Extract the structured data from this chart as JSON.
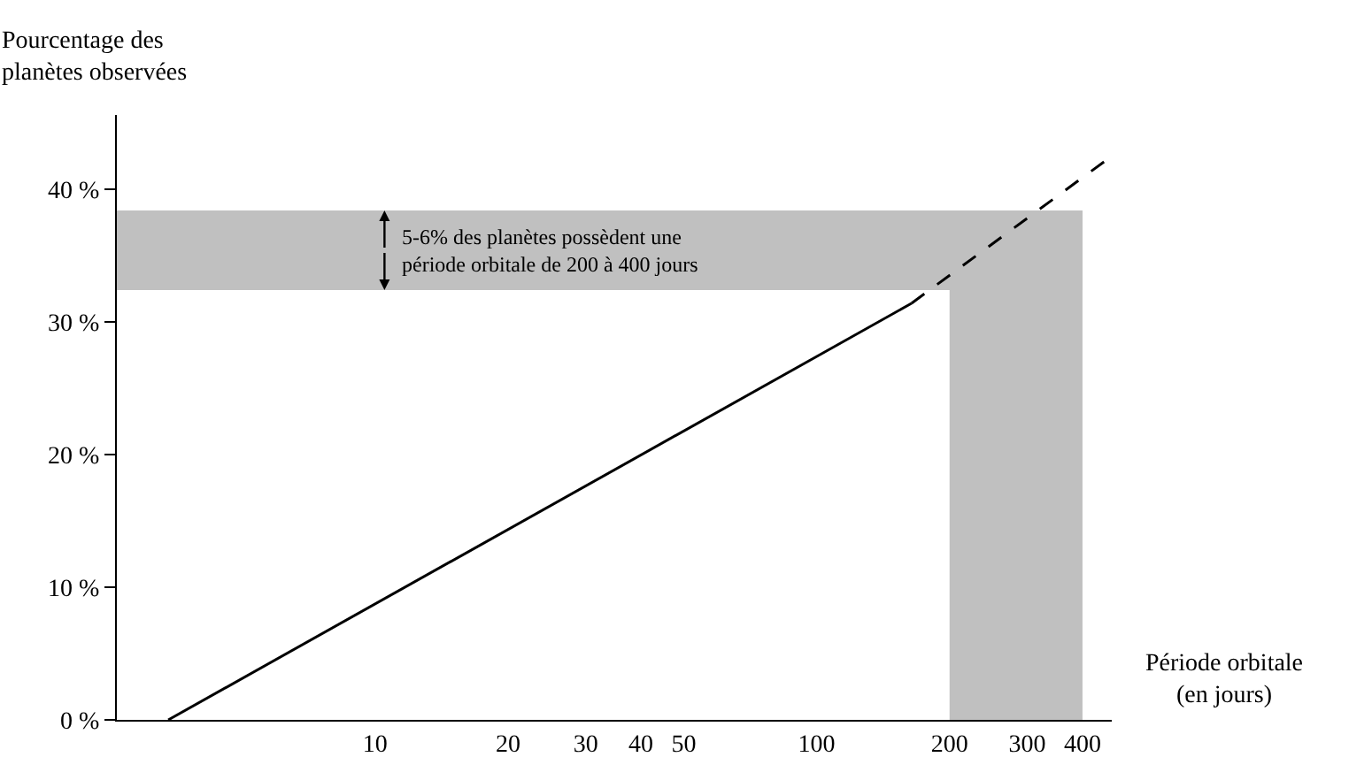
{
  "chart_data": {
    "type": "line",
    "xlabel": "Période orbitale\n(en jours)",
    "ylabel": "Pourcentage des\nplanètes observées",
    "log": "x",
    "xlim": [
      2.6,
      466
    ],
    "ylim": [
      0,
      45.6
    ],
    "xticks": [
      10,
      20,
      30,
      40,
      50,
      100,
      200,
      300,
      400
    ],
    "yticks": [
      {
        "value": 0,
        "label": "0 %"
      },
      {
        "value": 10,
        "label": "10 %"
      },
      {
        "value": 20,
        "label": "20 %"
      },
      {
        "value": 30,
        "label": "30 %"
      },
      {
        "value": 40,
        "label": "40 %"
      }
    ],
    "marker": "none",
    "series": [
      {
        "color": "#000000",
        "x": [
          3.4,
          164
        ],
        "values": [
          0,
          31.4
        ],
        "line_style": "solid"
      },
      {
        "color": "#000000",
        "x": [
          164,
          466
        ],
        "values": [
          31.4,
          42.5
        ],
        "line_style": "dashed"
      }
    ],
    "bands": [
      {
        "axis": "x",
        "from": 200,
        "to": 400,
        "color": "#c0c0c0"
      },
      {
        "axis": "y",
        "from": 32.4,
        "to": 38.4,
        "color": "#c0c0c0"
      }
    ],
    "annotations": [
      {
        "text": "5-6% des planètes possèdent une\npériode orbitale de 200 à 400 jours",
        "x": 10.5,
        "y": 32.4
      }
    ]
  }
}
